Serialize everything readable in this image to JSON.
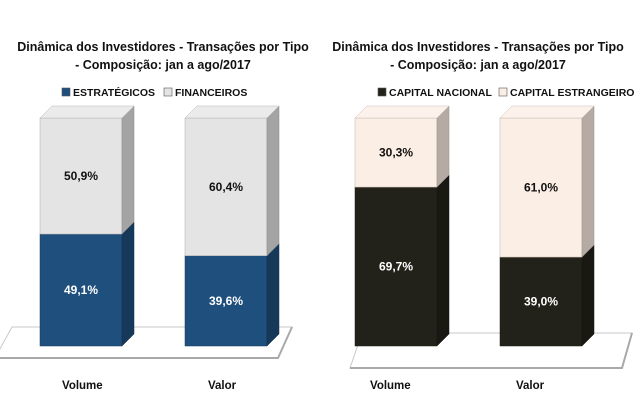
{
  "chart_data": [
    {
      "type": "stacked-bar-3d",
      "title_lines": [
        "Dinâmica dos Investidores - Transações por Tipo",
        "- Composição: jan a ago/2017"
      ],
      "categories": [
        "Volume",
        "Valor"
      ],
      "unit": "%",
      "legend_placement": "top",
      "series": [
        {
          "name": "ESTRATÉGICOS",
          "values": [
            49.1,
            39.6
          ],
          "labels": [
            "49,1%",
            "39,6%"
          ],
          "color": "#1f4f7d",
          "label_color": "#ffffff"
        },
        {
          "name": "FINANCEIROS",
          "values": [
            50.9,
            60.4
          ],
          "labels": [
            "50,9%",
            "60,4%"
          ],
          "color": "#e4e4e4",
          "label_color": "#111111"
        }
      ]
    },
    {
      "type": "stacked-bar-3d",
      "title_lines": [
        "Dinâmica dos Investidores - Transações por Tipo",
        "- Composição: jan a ago/2017"
      ],
      "categories": [
        "Volume",
        "Valor"
      ],
      "unit": "%",
      "legend_placement": "top",
      "series": [
        {
          "name": "CAPITAL NACIONAL",
          "values": [
            69.7,
            39.0
          ],
          "labels": [
            "69,7%",
            "39,0%"
          ],
          "color": "#23221a",
          "label_color": "#ffffff"
        },
        {
          "name": "CAPITAL ESTRANGEIRO",
          "values": [
            30.3,
            61.0
          ],
          "labels": [
            "30,3%",
            "61,0%"
          ],
          "color": "#fbeee4",
          "label_color": "#111111"
        }
      ]
    }
  ]
}
